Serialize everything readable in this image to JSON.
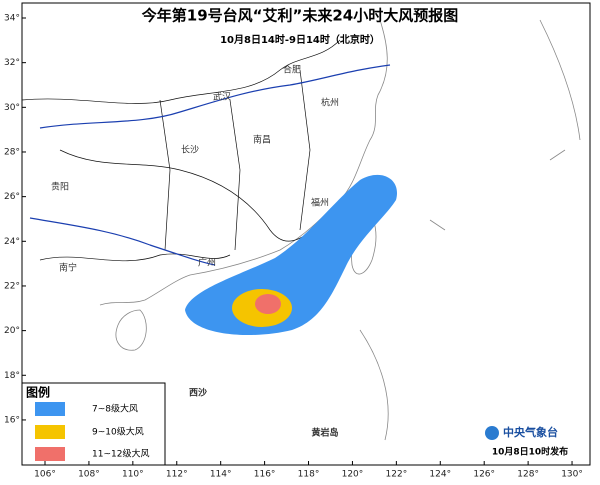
{
  "title": "今年第19号台风“艾利”未来24小时大风预报图",
  "subtitle": "10月8日14时-9日14时（北京时）",
  "map": {
    "lat_ticks": [
      {
        "value": 34,
        "label": "34°"
      },
      {
        "value": 32,
        "label": "32°"
      },
      {
        "value": 30,
        "label": "30°"
      },
      {
        "value": 28,
        "label": "28°"
      },
      {
        "value": 26,
        "label": "26°"
      },
      {
        "value": 24,
        "label": "24°"
      },
      {
        "value": 22,
        "label": "22°"
      },
      {
        "value": 20,
        "label": "20°"
      },
      {
        "value": 18,
        "label": "18°"
      },
      {
        "value": 16,
        "label": "16°"
      }
    ],
    "lon_ticks": [
      {
        "value": 106,
        "label": "106°"
      },
      {
        "value": 108,
        "label": "108°"
      },
      {
        "value": 110,
        "label": "110°"
      },
      {
        "value": 112,
        "label": "112°"
      },
      {
        "value": 114,
        "label": "114°"
      },
      {
        "value": 116,
        "label": "116°"
      },
      {
        "value": 118,
        "label": "118°"
      },
      {
        "value": 120,
        "label": "120°"
      },
      {
        "value": 122,
        "label": "122°"
      },
      {
        "value": 124,
        "label": "124°"
      },
      {
        "value": 126,
        "label": "126°"
      },
      {
        "value": 128,
        "label": "128°"
      },
      {
        "value": 130,
        "label": "130°"
      }
    ],
    "places": [
      "合肥",
      "武汉",
      "杭州",
      "长沙",
      "南昌",
      "福州",
      "贵阳",
      "南宁",
      "广州",
      "西沙",
      "黄岩岛"
    ]
  },
  "legend": {
    "title": "图例",
    "items": [
      "7~8级大风",
      "9~10级大风",
      "11~12级大风"
    ]
  },
  "footer": {
    "agency": "中央气象台",
    "issued": "10月8日10时发布"
  }
}
